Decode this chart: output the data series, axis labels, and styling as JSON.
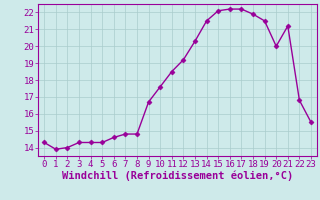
{
  "x": [
    0,
    1,
    2,
    3,
    4,
    5,
    6,
    7,
    8,
    9,
    10,
    11,
    12,
    13,
    14,
    15,
    16,
    17,
    18,
    19,
    20,
    21,
    22,
    23
  ],
  "y": [
    14.3,
    13.9,
    14.0,
    14.3,
    14.3,
    14.3,
    14.6,
    14.8,
    14.8,
    16.7,
    17.6,
    18.5,
    19.2,
    20.3,
    21.5,
    22.1,
    22.2,
    22.2,
    21.9,
    21.5,
    20.0,
    21.2,
    16.8,
    15.5
  ],
  "line_color": "#990099",
  "marker": "D",
  "markersize": 2.5,
  "bg_color": "#ceeaea",
  "grid_color": "#aacccc",
  "xlabel": "Windchill (Refroidissement éolien,°C)",
  "ylabel": "",
  "xlim": [
    -0.5,
    23.5
  ],
  "ylim": [
    13.5,
    22.5
  ],
  "yticks": [
    14,
    15,
    16,
    17,
    18,
    19,
    20,
    21,
    22
  ],
  "xticks": [
    0,
    1,
    2,
    3,
    4,
    5,
    6,
    7,
    8,
    9,
    10,
    11,
    12,
    13,
    14,
    15,
    16,
    17,
    18,
    19,
    20,
    21,
    22,
    23
  ],
  "tick_color": "#990099",
  "label_color": "#990099",
  "spine_color": "#990099",
  "font_size": 6.5,
  "xlabel_fontsize": 7.5
}
